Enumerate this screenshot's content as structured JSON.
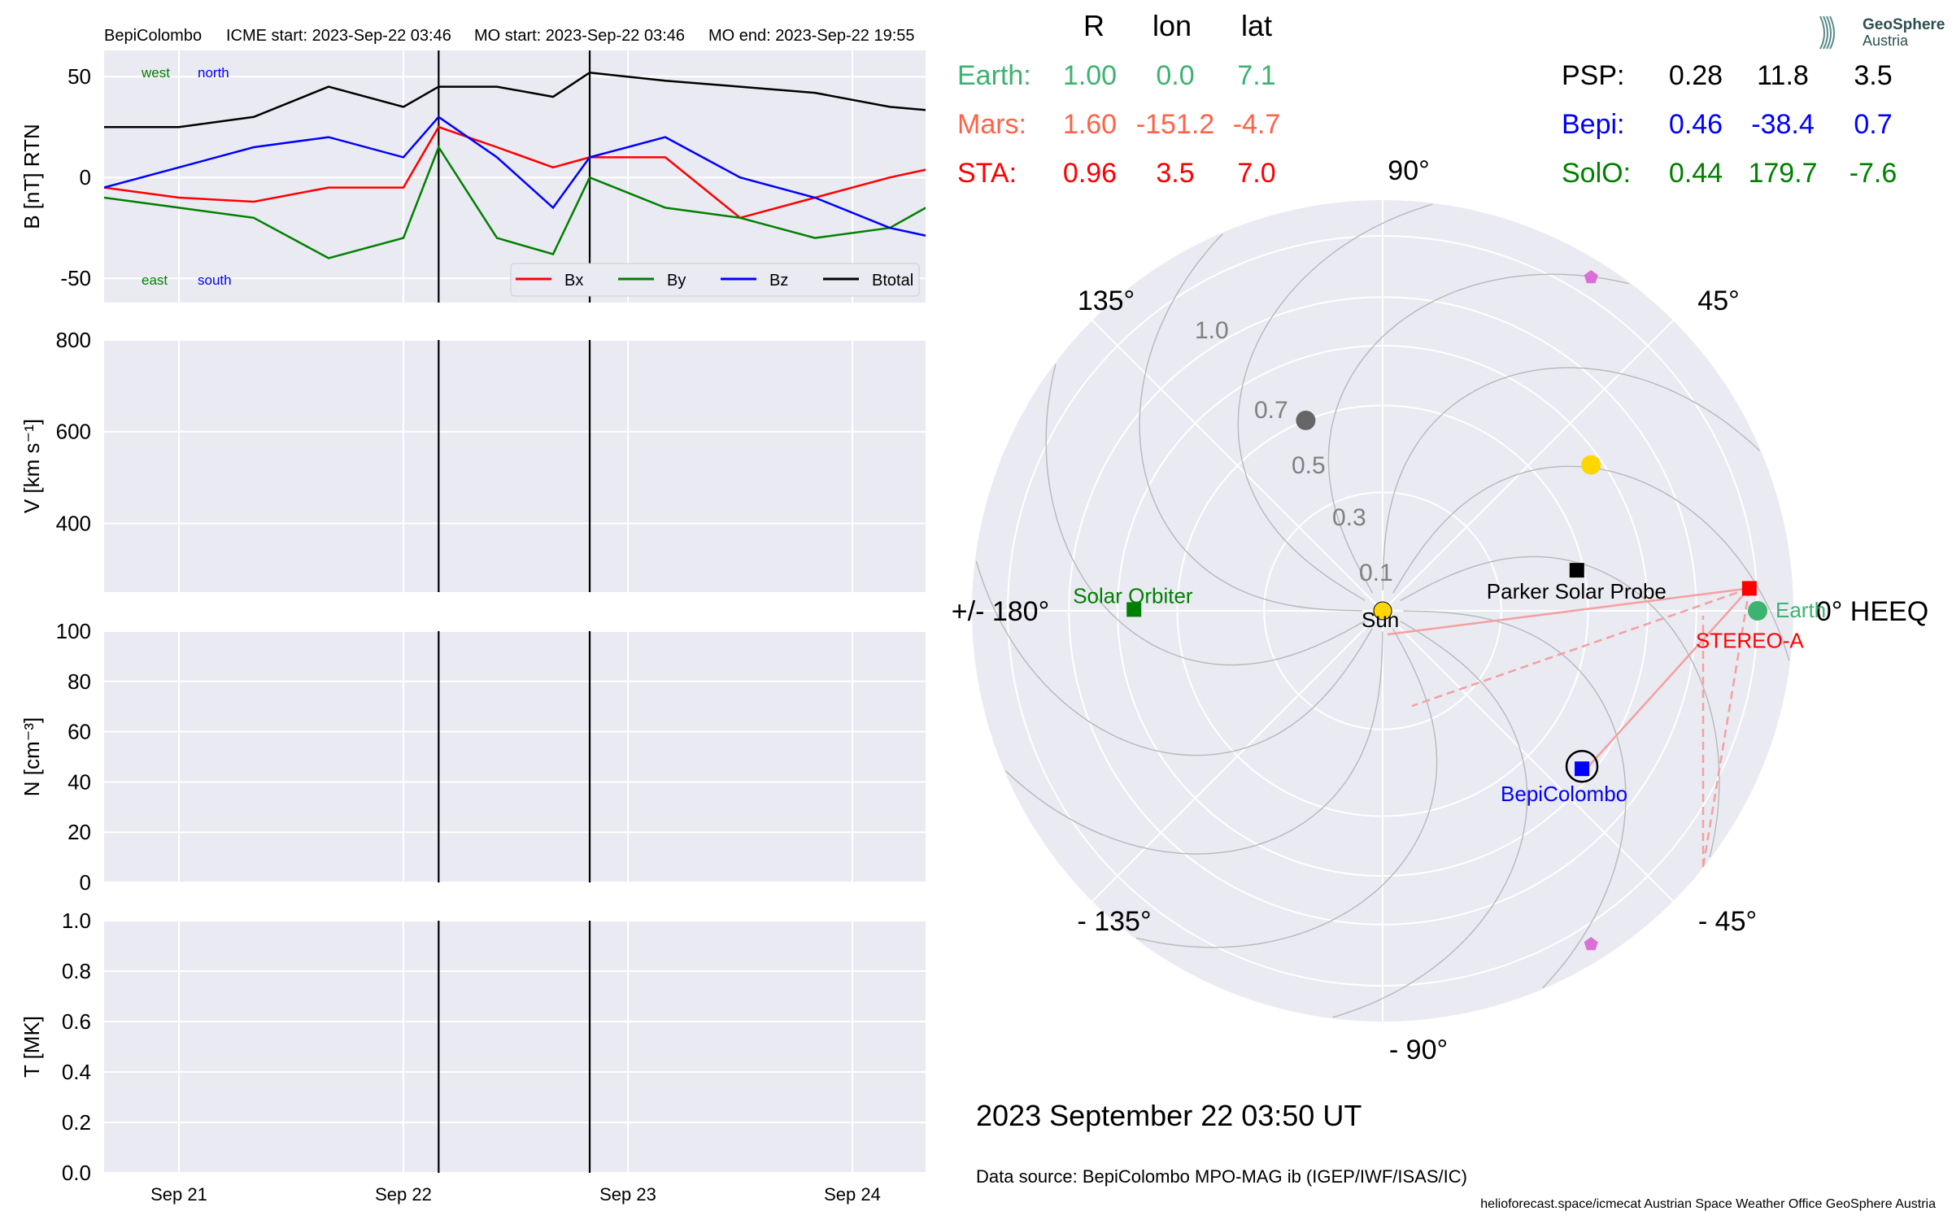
{
  "header": {
    "spacecraft": "BepiColombo",
    "icme_start": "ICME start: 2023-Sep-22 03:46",
    "mo_start": "MO start: 2023-Sep-22 03:46",
    "mo_end": "MO end: 2023-Sep-22 19:55"
  },
  "colors": {
    "bx": "#ff0000",
    "by": "#008000",
    "bz": "#0000ff",
    "btotal": "#000000",
    "earth": "#3cb371",
    "mars": "#ff6347",
    "sta": "#ff0000",
    "psp": "#000000",
    "bepi": "#0000ff",
    "solo": "#008000"
  },
  "panel_labels": {
    "west": "west",
    "north": "north",
    "east": "east",
    "south": "south"
  },
  "x_ticks": [
    "Sep 21",
    "Sep 22",
    "Sep 23",
    "Sep 24"
  ],
  "chart_data": [
    {
      "type": "line",
      "ylabel": "B [nT] RTN",
      "ylim": [
        -62,
        63
      ],
      "yticks": [
        50,
        0,
        -50
      ],
      "x_range": [
        "2023-09-20T16:00",
        "2023-09-24T09:00"
      ],
      "event_lines": [
        "2023-09-22T03:46",
        "2023-09-22T19:55"
      ],
      "legend": "bottom-right",
      "series": [
        {
          "name": "Bx",
          "x": [
            "2023-09-20T16:00",
            "2023-09-21T00:00",
            "2023-09-21T08:00",
            "2023-09-21T16:00",
            "2023-09-22T00:00",
            "2023-09-22T03:46",
            "2023-09-22T10:00",
            "2023-09-22T16:00",
            "2023-09-22T19:55",
            "2023-09-23T04:00",
            "2023-09-23T12:00",
            "2023-09-23T20:00",
            "2023-09-24T04:00",
            "2023-09-24T09:00"
          ],
          "y": [
            -5,
            -10,
            -12,
            -5,
            -5,
            25,
            15,
            5,
            10,
            10,
            -20,
            -10,
            0,
            5
          ]
        },
        {
          "name": "By",
          "x": [
            "2023-09-20T16:00",
            "2023-09-21T00:00",
            "2023-09-21T08:00",
            "2023-09-21T16:00",
            "2023-09-22T00:00",
            "2023-09-22T03:46",
            "2023-09-22T10:00",
            "2023-09-22T16:00",
            "2023-09-22T19:55",
            "2023-09-23T04:00",
            "2023-09-23T12:00",
            "2023-09-23T20:00",
            "2023-09-24T04:00",
            "2023-09-24T09:00"
          ],
          "y": [
            -10,
            -15,
            -20,
            -40,
            -30,
            15,
            -30,
            -38,
            0,
            -15,
            -20,
            -30,
            -25,
            -12
          ]
        },
        {
          "name": "Bz",
          "x": [
            "2023-09-20T16:00",
            "2023-09-21T00:00",
            "2023-09-21T08:00",
            "2023-09-21T16:00",
            "2023-09-22T00:00",
            "2023-09-22T03:46",
            "2023-09-22T10:00",
            "2023-09-22T16:00",
            "2023-09-22T19:55",
            "2023-09-23T04:00",
            "2023-09-23T12:00",
            "2023-09-23T20:00",
            "2023-09-24T04:00",
            "2023-09-24T09:00"
          ],
          "y": [
            -5,
            5,
            15,
            20,
            10,
            30,
            10,
            -15,
            10,
            20,
            0,
            -10,
            -25,
            -30
          ]
        },
        {
          "name": "Btotal",
          "x": [
            "2023-09-20T16:00",
            "2023-09-21T00:00",
            "2023-09-21T08:00",
            "2023-09-21T16:00",
            "2023-09-22T00:00",
            "2023-09-22T03:46",
            "2023-09-22T10:00",
            "2023-09-22T16:00",
            "2023-09-22T19:55",
            "2023-09-23T04:00",
            "2023-09-23T12:00",
            "2023-09-23T20:00",
            "2023-09-24T04:00",
            "2023-09-24T09:00"
          ],
          "y": [
            25,
            25,
            30,
            45,
            35,
            45,
            45,
            40,
            52,
            48,
            45,
            42,
            35,
            33
          ]
        }
      ]
    },
    {
      "type": "line",
      "ylabel": "V [km s⁻¹]",
      "ylim": [
        250,
        800
      ],
      "yticks": [
        800,
        600,
        400
      ],
      "series": []
    },
    {
      "type": "line",
      "ylabel": "N [cm⁻³]",
      "ylim": [
        0,
        100
      ],
      "yticks": [
        100,
        80,
        60,
        40,
        20,
        0
      ],
      "series": []
    },
    {
      "type": "line",
      "ylabel": "T [MK]",
      "ylim": [
        0,
        1
      ],
      "yticks": [
        "1.0",
        "0.8",
        "0.6",
        "0.4",
        "0.2",
        "0.0"
      ],
      "series": []
    }
  ],
  "positions_table": {
    "headers": [
      "R",
      "lon",
      "lat"
    ],
    "left": [
      {
        "name": "Earth:",
        "R": "1.00",
        "lon": "0.0",
        "lat": "7.1",
        "color": "#3cb371"
      },
      {
        "name": "Mars:",
        "R": "1.60",
        "lon": "-151.2",
        "lat": "-4.7",
        "color": "#ff6347"
      },
      {
        "name": "STA:",
        "R": "0.96",
        "lon": "3.5",
        "lat": "7.0",
        "color": "#ff0000"
      }
    ],
    "right": [
      {
        "name": "PSP:",
        "R": "0.28",
        "lon": "11.8",
        "lat": "3.5",
        "color": "#000000"
      },
      {
        "name": "Bepi:",
        "R": "0.46",
        "lon": "-38.4",
        "lat": "0.7",
        "color": "#0000ff"
      },
      {
        "name": "SolO:",
        "R": "0.44",
        "lon": "179.7",
        "lat": "-7.6",
        "color": "#008000"
      }
    ]
  },
  "polar": {
    "angle_labels": [
      "0° HEEQ",
      "45°",
      "90°",
      "135°",
      "+/- 180°",
      "- 135°",
      "- 90°",
      "- 45°"
    ],
    "radial_labels": [
      "0.1",
      "0.3",
      "0.5",
      "0.7",
      "1.0"
    ],
    "bodies": [
      {
        "label": "Earth",
        "r": 1.0,
        "lon": 0.0,
        "shape": "circle",
        "color": "#3cb371"
      },
      {
        "label": "STEREO-A",
        "r": 0.96,
        "lon": 3.5,
        "shape": "square",
        "color": "#ff0000"
      },
      {
        "label": "BepiColombo",
        "r": 0.46,
        "lon": -38.4,
        "shape": "square",
        "color": "#0000ff"
      },
      {
        "label": "Solar Orbiter",
        "r": 0.44,
        "lon": 179.7,
        "shape": "square",
        "color": "#008000"
      },
      {
        "label": "Parker Solar Probe",
        "r": 0.28,
        "lon": 11.8,
        "shape": "square",
        "color": "#000000"
      },
      {
        "label": "Sun",
        "r": 0.0,
        "lon": 0.0,
        "shape": "circle",
        "color": "#ffd700"
      }
    ],
    "extra_markers": [
      {
        "r": 0.46,
        "lon": 35,
        "shape": "circle",
        "color": "#ffd700"
      },
      {
        "r": 0.3,
        "lon": 112,
        "shape": "circle",
        "color": "#666666"
      },
      {
        "r": 1.1,
        "lon": 58,
        "shape": "pentagon",
        "color": "#da70d6"
      },
      {
        "r": 1.1,
        "lon": -58,
        "shape": "pentagon",
        "color": "#da70d6"
      }
    ]
  },
  "footer": {
    "timestamp": "2023 September 22  03:50 UT",
    "data_source": "Data source: BepiColombo MPO-MAG ib (IGEP/IWF/ISAS/IC)",
    "credits": "helioforecast.space/icmecat   Austrian Space Weather Office   GeoSphere Austria"
  },
  "logo": {
    "line1": "GeoSphere",
    "line2": "Austria"
  }
}
